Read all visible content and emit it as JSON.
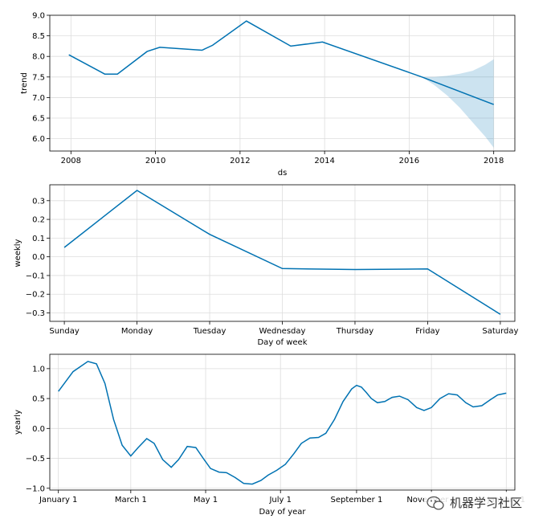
{
  "chart_data": [
    {
      "type": "line",
      "ylabel": "trend",
      "xlabel": "ds",
      "xlim": [
        2007.5,
        2018.5
      ],
      "ylim": [
        5.7,
        9.0
      ],
      "xticks": [
        2008,
        2010,
        2012,
        2014,
        2016,
        2018
      ],
      "xtick_labels": [
        "2008",
        "2010",
        "2012",
        "2014",
        "2016",
        "2018"
      ],
      "yticks": [
        6.0,
        6.5,
        7.0,
        7.5,
        8.0,
        8.5,
        9.0
      ],
      "ytick_labels": [
        "6.0",
        "6.5",
        "7.0",
        "7.5",
        "8.0",
        "8.5",
        "9.0"
      ],
      "x": [
        2007.95,
        2008.8,
        2009.1,
        2009.8,
        2010.1,
        2011.1,
        2011.35,
        2012.15,
        2013.2,
        2013.95,
        2016.3,
        2018.0
      ],
      "y": [
        8.04,
        7.57,
        7.57,
        8.12,
        8.22,
        8.15,
        8.27,
        8.86,
        8.25,
        8.35,
        7.5,
        6.83
      ],
      "uncertainty": {
        "x": [
          2016.3,
          2016.6,
          2016.9,
          2017.2,
          2017.5,
          2017.8,
          2018.0
        ],
        "upper": [
          7.5,
          7.5,
          7.53,
          7.58,
          7.65,
          7.8,
          7.93
        ],
        "lower": [
          7.5,
          7.3,
          7.05,
          6.75,
          6.4,
          6.05,
          5.78
        ]
      },
      "grid": true
    },
    {
      "type": "line",
      "ylabel": "weekly",
      "xlabel": "Day of week",
      "ylim": [
        -0.345,
        0.385
      ],
      "categories": [
        "Sunday",
        "Monday",
        "Tuesday",
        "Wednesday",
        "Thursday",
        "Friday",
        "Saturday"
      ],
      "values": [
        0.05,
        0.355,
        0.12,
        -0.063,
        -0.068,
        -0.065,
        -0.307
      ],
      "yticks": [
        -0.3,
        -0.2,
        -0.1,
        0.0,
        0.1,
        0.2,
        0.3
      ],
      "ytick_labels": [
        "−0.3",
        "−0.2",
        "−0.1",
        "0.0",
        "0.1",
        "0.2",
        "0.3"
      ],
      "grid": true
    },
    {
      "type": "line",
      "ylabel": "yearly",
      "xlabel": "Day of year",
      "xlim": [
        -7,
        372
      ],
      "ylim": [
        -1.03,
        1.24
      ],
      "xticks": [
        0,
        59,
        120,
        181,
        243,
        304,
        365
      ],
      "xtick_labels": [
        "January 1",
        "March 1",
        "May 1",
        "July 1",
        "September 1",
        "November 1",
        "January 1"
      ],
      "yticks": [
        -1.0,
        -0.5,
        0.0,
        0.5,
        1.0
      ],
      "ytick_labels": [
        "−1.0",
        "−0.5",
        "0.0",
        "0.5",
        "1.0"
      ],
      "x": [
        0,
        12,
        24,
        31,
        38,
        45,
        52,
        59,
        65,
        72,
        78,
        85,
        92,
        98,
        105,
        112,
        118,
        124,
        131,
        137,
        144,
        151,
        158,
        165,
        171,
        178,
        185,
        192,
        198,
        205,
        212,
        218,
        225,
        232,
        239,
        243,
        247,
        251,
        255,
        260,
        266,
        272,
        278,
        285,
        292,
        298,
        304,
        311,
        318,
        325,
        332,
        338,
        345,
        352,
        358,
        365
      ],
      "y": [
        0.62,
        0.95,
        1.12,
        1.08,
        0.75,
        0.15,
        -0.28,
        -0.46,
        -0.32,
        -0.17,
        -0.25,
        -0.52,
        -0.65,
        -0.52,
        -0.3,
        -0.32,
        -0.5,
        -0.67,
        -0.73,
        -0.74,
        -0.82,
        -0.92,
        -0.93,
        -0.87,
        -0.78,
        -0.7,
        -0.6,
        -0.42,
        -0.25,
        -0.16,
        -0.15,
        -0.08,
        0.15,
        0.45,
        0.66,
        0.72,
        0.69,
        0.6,
        0.5,
        0.43,
        0.45,
        0.52,
        0.54,
        0.48,
        0.35,
        0.3,
        0.35,
        0.5,
        0.58,
        0.56,
        0.43,
        0.36,
        0.38,
        0.48,
        0.56,
        0.59
      ],
      "grid": true
    }
  ],
  "watermark": {
    "text": "机器学习社区",
    "icon": "wechat-icon"
  }
}
